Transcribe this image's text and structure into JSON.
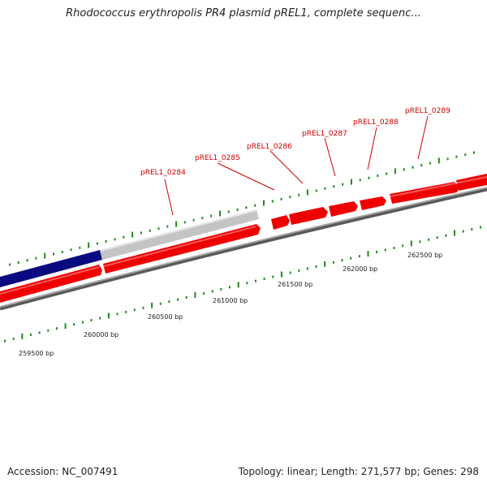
{
  "header": {
    "title": "Rhodococcus erythropolis PR4 plasmid pREL1, complete sequenc..."
  },
  "footer": {
    "accession": "Accession: NC_007491",
    "topology": "Topology: linear; Length: 271,577 bp; Genes: 298"
  },
  "colors": {
    "gene_forward": "#ee0000",
    "gene_highlight_dark": "#0a0a80",
    "gene_grey": "#c0c0c0",
    "backbone": "#808080",
    "tick": "#228822"
  },
  "gene_labels": [
    "pREL1_0284",
    "pREL1_0285",
    "pREL1_0286",
    "pREL1_0287",
    "pREL1_0288",
    "pREL1_0289"
  ],
  "position_labels": [
    "259500 bp",
    "260000 bp",
    "260500 bp",
    "261000 bp",
    "261500 bp",
    "262000 bp",
    "262500 bp"
  ]
}
